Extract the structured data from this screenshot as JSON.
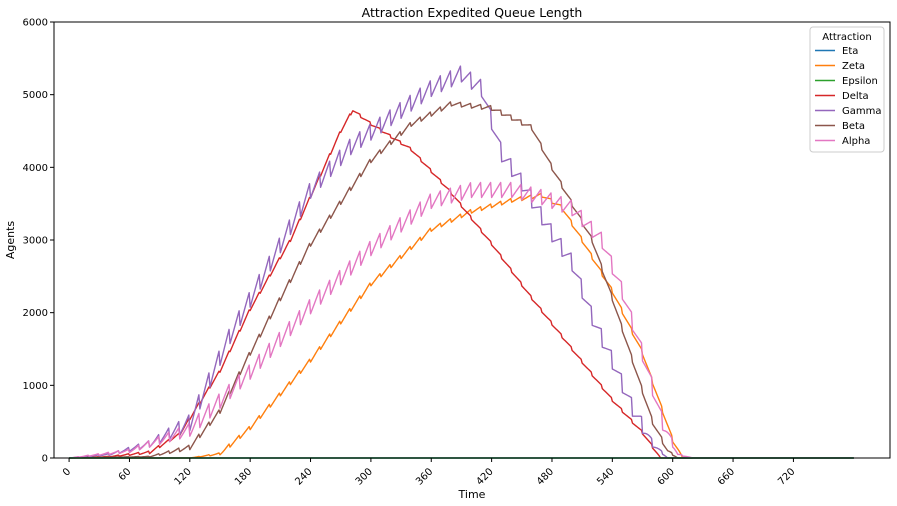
{
  "chart_data": {
    "type": "line",
    "title": "Attraction Expedited Queue Length",
    "xlabel": "Time",
    "ylabel": "Agents",
    "xlim": [
      -15,
      816
    ],
    "ylim": [
      0,
      6000
    ],
    "x_ticks": [
      0,
      60,
      120,
      180,
      240,
      300,
      360,
      420,
      480,
      540,
      600,
      660,
      720
    ],
    "y_ticks": [
      0,
      1000,
      2000,
      3000,
      4000,
      5000,
      6000
    ],
    "grid": false,
    "legend": {
      "title": "Attraction",
      "placement": "top-right"
    },
    "series": [
      {
        "name": "Eta",
        "color": "#1f77b4",
        "sawtooth": 0,
        "points": [
          [
            0,
            0
          ],
          [
            780,
            0
          ]
        ]
      },
      {
        "name": "Zeta",
        "color": "#ff7f0e",
        "sawtooth": 60,
        "points": [
          [
            0,
            0
          ],
          [
            120,
            0
          ],
          [
            150,
            60
          ],
          [
            180,
            420
          ],
          [
            240,
            1350
          ],
          [
            300,
            2400
          ],
          [
            360,
            3150
          ],
          [
            400,
            3400
          ],
          [
            440,
            3550
          ],
          [
            470,
            3620
          ],
          [
            490,
            3450
          ],
          [
            510,
            3000
          ],
          [
            540,
            2300
          ],
          [
            570,
            1450
          ],
          [
            590,
            650
          ],
          [
            600,
            250
          ],
          [
            610,
            0
          ],
          [
            780,
            0
          ]
        ]
      },
      {
        "name": "Epsilon",
        "color": "#2ca02c",
        "sawtooth": 0,
        "points": [
          [
            0,
            0
          ],
          [
            780,
            0
          ]
        ]
      },
      {
        "name": "Delta",
        "color": "#d62728",
        "sawtooth": 40,
        "points": [
          [
            0,
            0
          ],
          [
            40,
            20
          ],
          [
            80,
            80
          ],
          [
            110,
            330
          ],
          [
            150,
            1200
          ],
          [
            180,
            2050
          ],
          [
            220,
            3000
          ],
          [
            250,
            3900
          ],
          [
            270,
            4500
          ],
          [
            282,
            4790
          ],
          [
            300,
            4600
          ],
          [
            340,
            4250
          ],
          [
            380,
            3650
          ],
          [
            420,
            2950
          ],
          [
            460,
            2200
          ],
          [
            500,
            1500
          ],
          [
            540,
            800
          ],
          [
            570,
            350
          ],
          [
            588,
            0
          ],
          [
            780,
            0
          ]
        ]
      },
      {
        "name": "Gamma",
        "color": "#9467bd",
        "sawtooth": 250,
        "points": [
          [
            0,
            0
          ],
          [
            40,
            50
          ],
          [
            80,
            200
          ],
          [
            120,
            500
          ],
          [
            160,
            1700
          ],
          [
            200,
            2700
          ],
          [
            240,
            3700
          ],
          [
            280,
            4300
          ],
          [
            320,
            4700
          ],
          [
            360,
            5100
          ],
          [
            390,
            5300
          ],
          [
            410,
            5100
          ],
          [
            430,
            4200
          ],
          [
            450,
            3800
          ],
          [
            480,
            3100
          ],
          [
            500,
            2700
          ],
          [
            520,
            1950
          ],
          [
            540,
            1350
          ],
          [
            560,
            700
          ],
          [
            580,
            200
          ],
          [
            595,
            0
          ],
          [
            780,
            0
          ]
        ]
      },
      {
        "name": "Beta",
        "color": "#8c564b",
        "sawtooth": 70,
        "points": [
          [
            0,
            0
          ],
          [
            80,
            20
          ],
          [
            120,
            150
          ],
          [
            150,
            650
          ],
          [
            180,
            1450
          ],
          [
            240,
            2950
          ],
          [
            300,
            4100
          ],
          [
            340,
            4600
          ],
          [
            380,
            4880
          ],
          [
            420,
            4820
          ],
          [
            460,
            4550
          ],
          [
            480,
            4000
          ],
          [
            500,
            3500
          ],
          [
            520,
            3000
          ],
          [
            540,
            2200
          ],
          [
            560,
            1350
          ],
          [
            580,
            500
          ],
          [
            595,
            100
          ],
          [
            605,
            0
          ],
          [
            780,
            0
          ]
        ]
      },
      {
        "name": "Alpha",
        "color": "#e377c2",
        "sawtooth": 230,
        "points": [
          [
            0,
            0
          ],
          [
            60,
            100
          ],
          [
            120,
            400
          ],
          [
            180,
            1200
          ],
          [
            240,
            2100
          ],
          [
            300,
            2900
          ],
          [
            360,
            3550
          ],
          [
            400,
            3700
          ],
          [
            440,
            3700
          ],
          [
            470,
            3600
          ],
          [
            500,
            3450
          ],
          [
            530,
            3000
          ],
          [
            550,
            2300
          ],
          [
            570,
            1450
          ],
          [
            590,
            500
          ],
          [
            605,
            50
          ],
          [
            620,
            0
          ],
          [
            780,
            0
          ]
        ]
      }
    ]
  }
}
